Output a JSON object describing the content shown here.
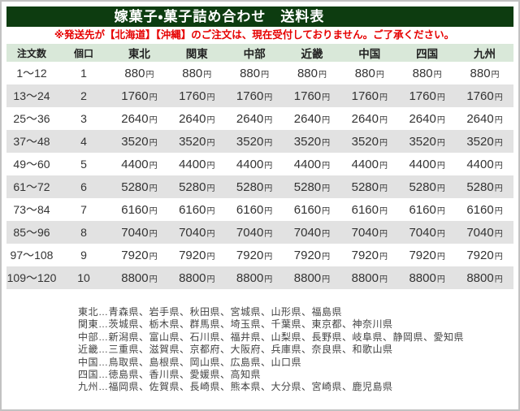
{
  "header": {
    "title": "嫁菓子・菓子詰め合わせ　送料表",
    "notice": "※発送先が【北海道】【沖縄】のご注文は、現在受付しておりません。ご了承ください。"
  },
  "colors": {
    "title_bar_bg": "#0d3c10",
    "title_text": "#ffffff",
    "notice_text": "#e60000",
    "table_header_bg": "#d9e8d9",
    "stripe_row_bg": "#e2e2e2",
    "body_text": "#333333"
  },
  "table": {
    "columns": [
      "注文数",
      "個口",
      "東北",
      "関東",
      "中部",
      "近畿",
      "中国",
      "四国",
      "九州"
    ],
    "price_unit": "円",
    "rows": [
      {
        "qty": "1〜12",
        "parcels": "1",
        "prices": [
          "880",
          "880",
          "880",
          "880",
          "880",
          "880",
          "880"
        ]
      },
      {
        "qty": "13〜24",
        "parcels": "2",
        "prices": [
          "1760",
          "1760",
          "1760",
          "1760",
          "1760",
          "1760",
          "1760"
        ]
      },
      {
        "qty": "25〜36",
        "parcels": "3",
        "prices": [
          "2640",
          "2640",
          "2640",
          "2640",
          "2640",
          "2640",
          "2640"
        ]
      },
      {
        "qty": "37〜48",
        "parcels": "4",
        "prices": [
          "3520",
          "3520",
          "3520",
          "3520",
          "3520",
          "3520",
          "3520"
        ]
      },
      {
        "qty": "49〜60",
        "parcels": "5",
        "prices": [
          "4400",
          "4400",
          "4400",
          "4400",
          "4400",
          "4400",
          "4400"
        ]
      },
      {
        "qty": "61〜72",
        "parcels": "6",
        "prices": [
          "5280",
          "5280",
          "5280",
          "5280",
          "5280",
          "5280",
          "5280"
        ]
      },
      {
        "qty": "73〜84",
        "parcels": "7",
        "prices": [
          "6160",
          "6160",
          "6160",
          "6160",
          "6160",
          "6160",
          "6160"
        ]
      },
      {
        "qty": "85〜96",
        "parcels": "8",
        "prices": [
          "7040",
          "7040",
          "7040",
          "7040",
          "7040",
          "7040",
          "7040"
        ]
      },
      {
        "qty": "97〜108",
        "parcels": "9",
        "prices": [
          "7920",
          "7920",
          "7920",
          "7920",
          "7920",
          "7920",
          "7920"
        ]
      },
      {
        "qty": "109〜120",
        "parcels": "10",
        "prices": [
          "8800",
          "8800",
          "8800",
          "8800",
          "8800",
          "8800",
          "8800"
        ]
      }
    ]
  },
  "regions": [
    "東北…青森県、岩手県、秋田県、宮城県、山形県、福島県",
    "関東…茨城県、栃木県、群馬県、埼玉県、千葉県、東京都、神奈川県",
    "中部…新潟県、富山県、石川県、福井県、山梨県、長野県、岐阜県、静岡県、愛知県",
    "近畿…三重県、滋賀県、京都府、大阪府、兵庫県、奈良県、和歌山県",
    "中国…鳥取県、島根県、岡山県、広島県、山口県",
    "四国…徳島県、香川県、愛媛県、高知県",
    "九州…福岡県、佐賀県、長崎県、熊本県、大分県、宮崎県、鹿児島県"
  ]
}
